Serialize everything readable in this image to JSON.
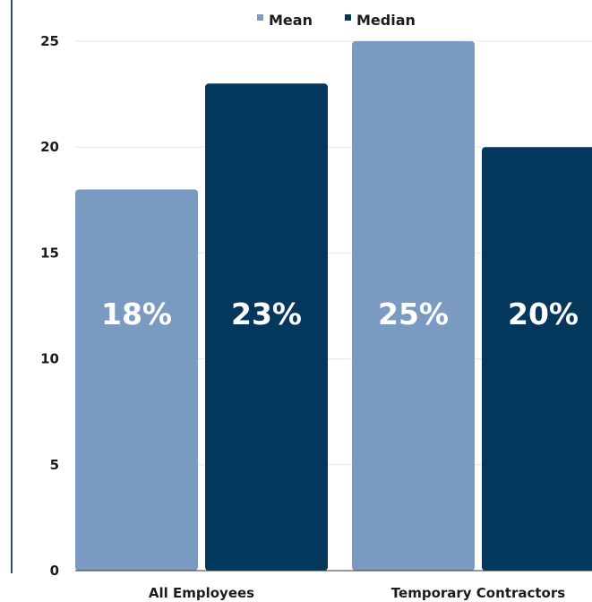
{
  "chart_data": {
    "type": "bar",
    "title": "",
    "xlabel": "",
    "ylabel": "",
    "categories": [
      "All Employees",
      "Temporary Contractors"
    ],
    "series": [
      {
        "name": "Mean",
        "values": [
          18,
          25
        ],
        "labels": [
          "18%",
          "25%"
        ],
        "color": "#7b9ac2"
      },
      {
        "name": "Median",
        "values": [
          23,
          20
        ],
        "labels": [
          "23%",
          "20%"
        ],
        "color": "#03375c"
      }
    ],
    "ylim": [
      0,
      25
    ],
    "yticks": [
      0,
      5,
      10,
      15,
      20,
      25
    ],
    "grid": true,
    "legend_position": "top"
  }
}
